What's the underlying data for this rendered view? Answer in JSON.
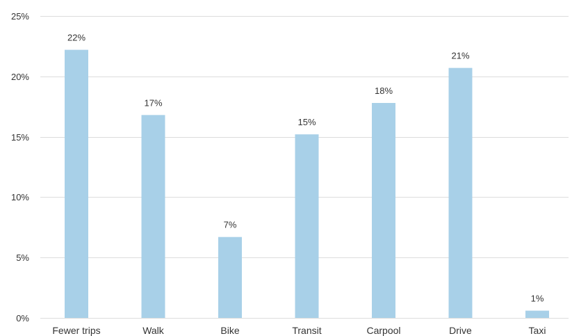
{
  "chart_data": {
    "type": "bar",
    "categories": [
      "Fewer trips",
      "Walk",
      "Bike",
      "Transit",
      "Carpool",
      "Drive",
      "Taxi"
    ],
    "values": [
      22.2,
      16.8,
      6.7,
      15.2,
      17.8,
      20.7,
      0.6
    ],
    "data_labels": [
      "22%",
      "17%",
      "7%",
      "15%",
      "18%",
      "21%",
      "1%"
    ],
    "y_ticks": [
      0,
      5,
      10,
      15,
      20,
      25
    ],
    "y_tick_labels": [
      "0%",
      "5%",
      "10%",
      "15%",
      "20%",
      "25%"
    ],
    "ylim": [
      0,
      25
    ],
    "grid": true,
    "legend": "none",
    "colors": {
      "bar": "#a8d0e8",
      "grid": "#dcdcdc",
      "text": "#333333"
    }
  }
}
